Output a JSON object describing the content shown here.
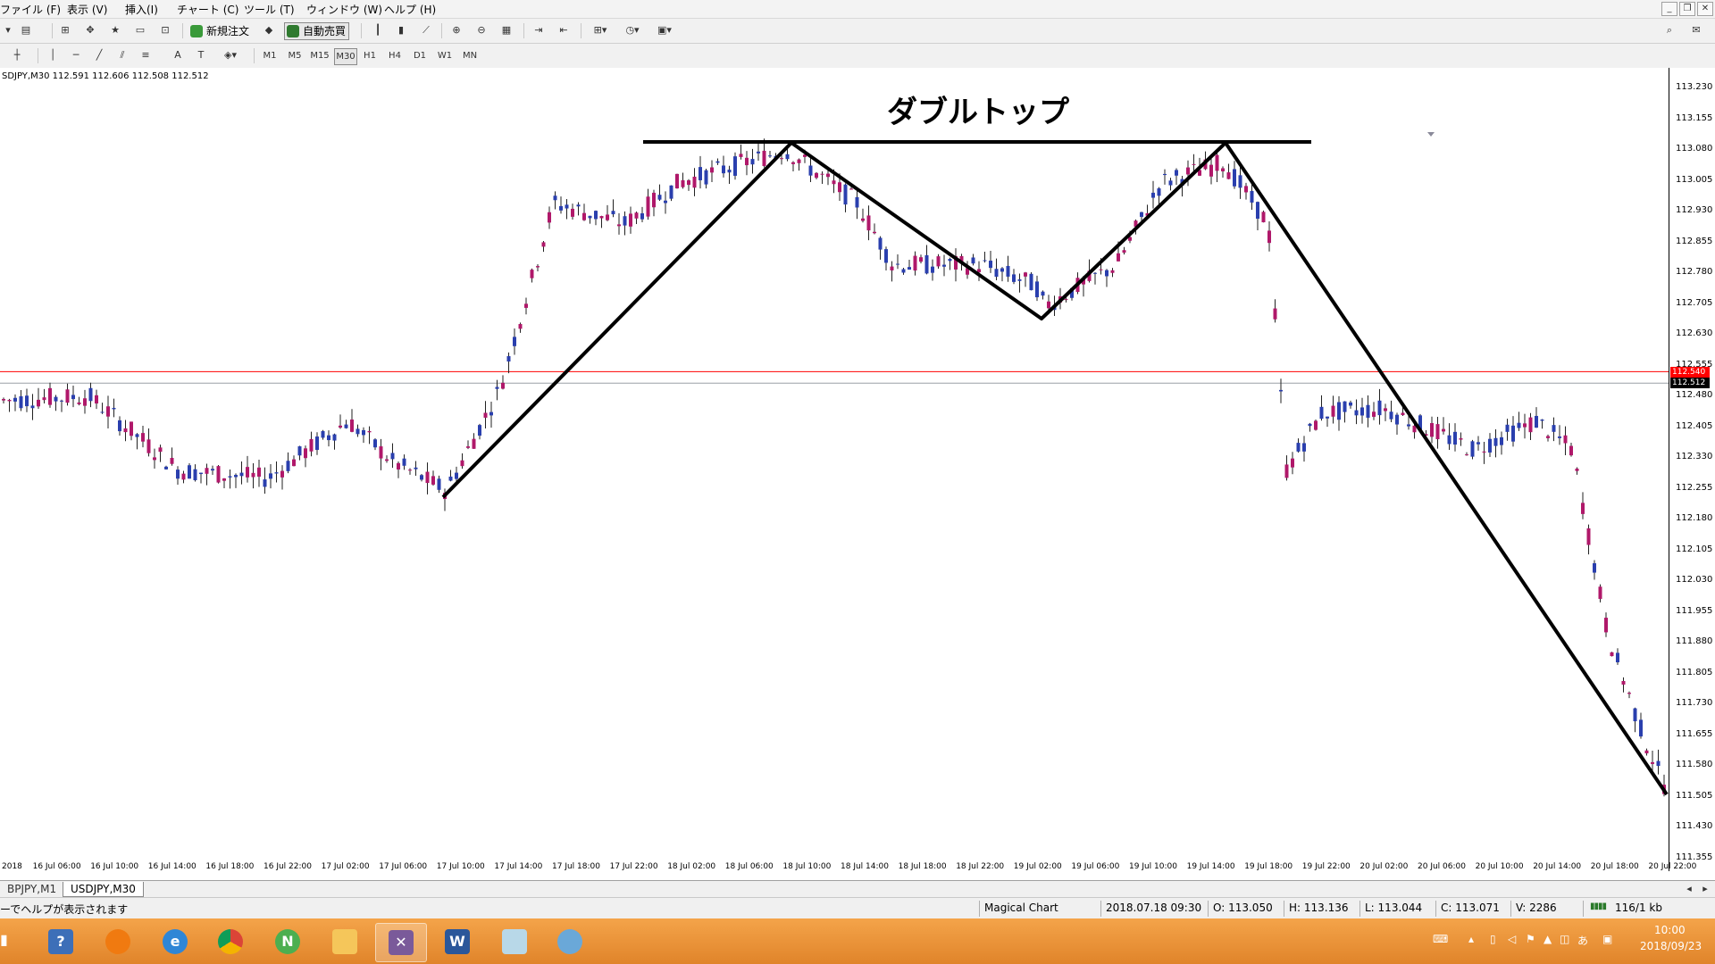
{
  "menu": {
    "items": [
      "ファイル (F)",
      "表示 (V)",
      "挿入(I)",
      "チャート (C)",
      "ツール (T)",
      "ウィンドウ (W)",
      "ヘルプ (H)"
    ]
  },
  "toolbar": {
    "new_order_label": "新規注文",
    "auto_trading_label": "自動売買",
    "timeframes": [
      "M1",
      "M5",
      "M15",
      "M30",
      "H1",
      "H4",
      "D1",
      "W1",
      "MN"
    ],
    "selected_timeframe": "M30"
  },
  "chart": {
    "info": "SDJPY,M30  112.591 112.606 112.508 112.512",
    "title": "ダブルトップ",
    "price_labels": [
      "113.230",
      "113.155",
      "113.080",
      "113.005",
      "112.930",
      "112.855",
      "112.780",
      "112.705",
      "112.630",
      "112.555",
      "112.480",
      "112.405",
      "112.330",
      "112.255",
      "112.180",
      "112.105",
      "112.030",
      "111.955",
      "111.880",
      "111.805",
      "111.730",
      "111.655",
      "111.580",
      "111.505",
      "111.430",
      "111.355"
    ],
    "time_labels": [
      "2018",
      "16 Jul 06:00",
      "16 Jul 10:00",
      "16 Jul 14:00",
      "16 Jul 18:00",
      "16 Jul 22:00",
      "17 Jul 02:00",
      "17 Jul 06:00",
      "17 Jul 10:00",
      "17 Jul 14:00",
      "17 Jul 18:00",
      "17 Jul 22:00",
      "18 Jul 02:00",
      "18 Jul 06:00",
      "18 Jul 10:00",
      "18 Jul 14:00",
      "18 Jul 18:00",
      "18 Jul 22:00",
      "19 Jul 02:00",
      "19 Jul 06:00",
      "19 Jul 10:00",
      "19 Jul 14:00",
      "19 Jul 18:00",
      "19 Jul 22:00",
      "20 Jul 02:00",
      "20 Jul 06:00",
      "20 Jul 10:00",
      "20 Jul 14:00",
      "20 Jul 18:00",
      "20 Jul 22:00"
    ],
    "ask_price": "112.540",
    "bid_price": "112.512",
    "ask_color": "#ff0000",
    "bid_color": "#000000",
    "bull_color": "#b0186a",
    "bear_color": "#2a3fae"
  },
  "tabs": [
    "BPJPY,M1",
    "USDJPY,M30"
  ],
  "active_tab": "USDJPY,M30",
  "status": {
    "help": "ーでヘルプが表示されます",
    "profile": "Magical Chart",
    "datetime": "2018.07.18 09:30",
    "open": "O: 113.050",
    "high": "H: 113.136",
    "low": "L: 113.044",
    "close": "C: 113.071",
    "volume": "V: 2286",
    "traffic": "116/1 kb"
  },
  "taskbar": {
    "apps": [
      "help-app",
      "orange-app",
      "ie-browser",
      "chrome-browser",
      "green-app",
      "file-explorer",
      "mt4-app",
      "word-app",
      "notes-app",
      "paint-app"
    ],
    "ime": "あ",
    "time": "10:00",
    "date": "2018/09/23"
  }
}
